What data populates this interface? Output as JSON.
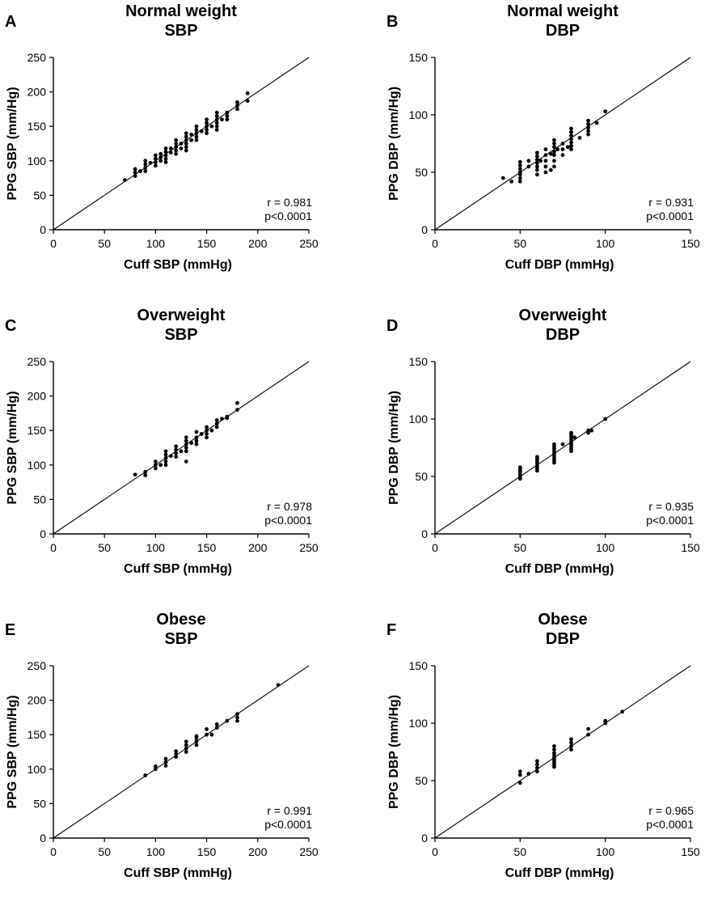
{
  "chart_data": [
    {
      "type": "scatter",
      "panel": "A",
      "title_lines": [
        "Normal weight",
        "SBP"
      ],
      "xlabel": "Cuff SBP (mmHg)",
      "ylabel": "PPG SBP (mm/Hg)",
      "xlim": [
        0,
        250
      ],
      "ylim": [
        0,
        250
      ],
      "xticks": [
        "0",
        "50",
        "100",
        "150",
        "200",
        "250"
      ],
      "yticks": [
        "0",
        "50",
        "100",
        "150",
        "200",
        "250"
      ],
      "tick_values": [
        0,
        50,
        100,
        150,
        200,
        250
      ],
      "identity_line": true,
      "stat_r": "r = 0.981",
      "stat_p": "p<0.0001",
      "points": [
        [
          70,
          72
        ],
        [
          80,
          78
        ],
        [
          80,
          83
        ],
        [
          80,
          88
        ],
        [
          85,
          85
        ],
        [
          90,
          85
        ],
        [
          90,
          90
        ],
        [
          90,
          95
        ],
        [
          90,
          100
        ],
        [
          95,
          97
        ],
        [
          100,
          93
        ],
        [
          100,
          98
        ],
        [
          100,
          103
        ],
        [
          100,
          108
        ],
        [
          105,
          100
        ],
        [
          105,
          105
        ],
        [
          105,
          110
        ],
        [
          110,
          98
        ],
        [
          110,
          103
        ],
        [
          110,
          108
        ],
        [
          110,
          113
        ],
        [
          110,
          118
        ],
        [
          115,
          112
        ],
        [
          115,
          118
        ],
        [
          120,
          110
        ],
        [
          120,
          115
        ],
        [
          120,
          120
        ],
        [
          120,
          125
        ],
        [
          120,
          130
        ],
        [
          125,
          118
        ],
        [
          125,
          125
        ],
        [
          130,
          115
        ],
        [
          130,
          120
        ],
        [
          130,
          125
        ],
        [
          130,
          130
        ],
        [
          130,
          135
        ],
        [
          130,
          140
        ],
        [
          135,
          130
        ],
        [
          135,
          138
        ],
        [
          140,
          130
        ],
        [
          140,
          135
        ],
        [
          140,
          140
        ],
        [
          140,
          145
        ],
        [
          140,
          150
        ],
        [
          145,
          143
        ],
        [
          150,
          140
        ],
        [
          150,
          145
        ],
        [
          150,
          150
        ],
        [
          150,
          155
        ],
        [
          150,
          160
        ],
        [
          155,
          150
        ],
        [
          160,
          145
        ],
        [
          160,
          150
        ],
        [
          160,
          155
        ],
        [
          160,
          160
        ],
        [
          160,
          165
        ],
        [
          160,
          170
        ],
        [
          165,
          160
        ],
        [
          170,
          160
        ],
        [
          170,
          165
        ],
        [
          170,
          170
        ],
        [
          180,
          175
        ],
        [
          180,
          180
        ],
        [
          180,
          185
        ],
        [
          190,
          187
        ],
        [
          190,
          198
        ]
      ]
    },
    {
      "type": "scatter",
      "panel": "B",
      "title_lines": [
        "Normal weight",
        "DBP"
      ],
      "xlabel": "Cuff DBP (mmHg)",
      "ylabel": "PPG DBP (mm/Hg)",
      "xlim": [
        0,
        150
      ],
      "ylim": [
        0,
        150
      ],
      "xticks": [
        "0",
        "50",
        "100",
        "150"
      ],
      "yticks": [
        "0",
        "50",
        "100",
        "150"
      ],
      "tick_values": [
        0,
        50,
        100,
        150
      ],
      "identity_line": true,
      "stat_r": "r = 0.931",
      "stat_p": "p<0.0001",
      "points": [
        [
          40,
          45
        ],
        [
          45,
          42
        ],
        [
          50,
          42
        ],
        [
          50,
          45
        ],
        [
          50,
          48
        ],
        [
          50,
          50
        ],
        [
          50,
          53
        ],
        [
          50,
          56
        ],
        [
          50,
          59
        ],
        [
          55,
          55
        ],
        [
          55,
          60
        ],
        [
          60,
          48
        ],
        [
          60,
          52
        ],
        [
          60,
          55
        ],
        [
          60,
          58
        ],
        [
          60,
          61
        ],
        [
          60,
          64
        ],
        [
          60,
          67
        ],
        [
          62,
          60
        ],
        [
          65,
          50
        ],
        [
          65,
          55
        ],
        [
          65,
          60
        ],
        [
          65,
          65
        ],
        [
          65,
          70
        ],
        [
          68,
          52
        ],
        [
          68,
          66
        ],
        [
          70,
          55
        ],
        [
          70,
          60
        ],
        [
          70,
          65
        ],
        [
          70,
          68
        ],
        [
          70,
          72
        ],
        [
          70,
          75
        ],
        [
          70,
          78
        ],
        [
          72,
          70
        ],
        [
          75,
          65
        ],
        [
          75,
          70
        ],
        [
          75,
          75
        ],
        [
          78,
          72
        ],
        [
          80,
          70
        ],
        [
          80,
          73
        ],
        [
          80,
          76
        ],
        [
          80,
          79
        ],
        [
          80,
          82
        ],
        [
          80,
          85
        ],
        [
          80,
          88
        ],
        [
          85,
          80
        ],
        [
          90,
          83
        ],
        [
          90,
          86
        ],
        [
          90,
          89
        ],
        [
          90,
          92
        ],
        [
          90,
          95
        ],
        [
          95,
          93
        ],
        [
          100,
          103
        ]
      ]
    },
    {
      "type": "scatter",
      "panel": "C",
      "title_lines": [
        "Overweight",
        "SBP"
      ],
      "xlabel": "Cuff SBP (mmHg)",
      "ylabel": "PPG SBP (mm/Hg)",
      "xlim": [
        0,
        250
      ],
      "ylim": [
        0,
        250
      ],
      "xticks": [
        "0",
        "50",
        "100",
        "150",
        "200",
        "250"
      ],
      "yticks": [
        "0",
        "50",
        "100",
        "150",
        "200",
        "250"
      ],
      "tick_values": [
        0,
        50,
        100,
        150,
        200,
        250
      ],
      "identity_line": true,
      "stat_r": "r = 0.978",
      "stat_p": "p<0.0001",
      "points": [
        [
          80,
          86
        ],
        [
          90,
          85
        ],
        [
          90,
          90
        ],
        [
          100,
          95
        ],
        [
          100,
          100
        ],
        [
          100,
          105
        ],
        [
          105,
          100
        ],
        [
          110,
          100
        ],
        [
          110,
          105
        ],
        [
          110,
          110
        ],
        [
          110,
          115
        ],
        [
          110,
          120
        ],
        [
          115,
          113
        ],
        [
          120,
          112
        ],
        [
          120,
          117
        ],
        [
          120,
          122
        ],
        [
          120,
          127
        ],
        [
          125,
          120
        ],
        [
          130,
          105
        ],
        [
          130,
          120
        ],
        [
          130,
          125
        ],
        [
          130,
          130
        ],
        [
          130,
          135
        ],
        [
          130,
          140
        ],
        [
          135,
          132
        ],
        [
          140,
          130
        ],
        [
          140,
          135
        ],
        [
          140,
          140
        ],
        [
          140,
          148
        ],
        [
          145,
          145
        ],
        [
          150,
          140
        ],
        [
          150,
          145
        ],
        [
          150,
          150
        ],
        [
          150,
          155
        ],
        [
          155,
          150
        ],
        [
          160,
          155
        ],
        [
          160,
          160
        ],
        [
          160,
          165
        ],
        [
          165,
          167
        ],
        [
          170,
          168
        ],
        [
          170,
          170
        ],
        [
          180,
          180
        ],
        [
          180,
          190
        ]
      ]
    },
    {
      "type": "scatter",
      "panel": "D",
      "title_lines": [
        "Overweight",
        "DBP"
      ],
      "xlabel": "Cuff DBP (mmHg)",
      "ylabel": "PPG DBP (mm/Hg)",
      "xlim": [
        0,
        150
      ],
      "ylim": [
        0,
        150
      ],
      "xticks": [
        "0",
        "50",
        "100",
        "150"
      ],
      "yticks": [
        "0",
        "50",
        "100",
        "150"
      ],
      "tick_values": [
        0,
        50,
        100,
        150
      ],
      "identity_line": true,
      "stat_r": "r = 0.935",
      "stat_p": "p<0.0001",
      "points": [
        [
          50,
          48
        ],
        [
          50,
          50
        ],
        [
          50,
          52
        ],
        [
          50,
          54
        ],
        [
          50,
          56
        ],
        [
          50,
          58
        ],
        [
          60,
          55
        ],
        [
          60,
          57
        ],
        [
          60,
          59
        ],
        [
          60,
          61
        ],
        [
          60,
          63
        ],
        [
          60,
          65
        ],
        [
          60,
          67
        ],
        [
          70,
          62
        ],
        [
          70,
          64
        ],
        [
          70,
          66
        ],
        [
          70,
          68
        ],
        [
          70,
          70
        ],
        [
          70,
          72
        ],
        [
          70,
          74
        ],
        [
          70,
          76
        ],
        [
          70,
          78
        ],
        [
          75,
          78
        ],
        [
          80,
          72
        ],
        [
          80,
          74
        ],
        [
          80,
          76
        ],
        [
          80,
          78
        ],
        [
          80,
          80
        ],
        [
          80,
          82
        ],
        [
          80,
          84
        ],
        [
          80,
          86
        ],
        [
          80,
          88
        ],
        [
          82,
          84
        ],
        [
          90,
          88
        ],
        [
          90,
          90
        ],
        [
          92,
          90
        ],
        [
          100,
          100
        ]
      ]
    },
    {
      "type": "scatter",
      "panel": "E",
      "title_lines": [
        "Obese",
        "SBP"
      ],
      "xlabel": "Cuff SBP (mmHg)",
      "ylabel": "PPG SBP (mm/Hg)",
      "xlim": [
        0,
        250
      ],
      "ylim": [
        0,
        250
      ],
      "xticks": [
        "0",
        "50",
        "100",
        "150",
        "200",
        "250"
      ],
      "yticks": [
        "0",
        "50",
        "100",
        "150",
        "200",
        "250"
      ],
      "tick_values": [
        0,
        50,
        100,
        150,
        200,
        250
      ],
      "identity_line": true,
      "stat_r": "r = 0.991",
      "stat_p": "p<0.0001",
      "points": [
        [
          90,
          91
        ],
        [
          100,
          100
        ],
        [
          100,
          104
        ],
        [
          110,
          105
        ],
        [
          110,
          110
        ],
        [
          110,
          115
        ],
        [
          120,
          118
        ],
        [
          120,
          122
        ],
        [
          120,
          126
        ],
        [
          130,
          125
        ],
        [
          130,
          130
        ],
        [
          130,
          135
        ],
        [
          130,
          140
        ],
        [
          140,
          135
        ],
        [
          140,
          140
        ],
        [
          140,
          145
        ],
        [
          140,
          148
        ],
        [
          150,
          150
        ],
        [
          150,
          158
        ],
        [
          155,
          150
        ],
        [
          160,
          160
        ],
        [
          160,
          165
        ],
        [
          170,
          170
        ],
        [
          180,
          170
        ],
        [
          180,
          175
        ],
        [
          180,
          180
        ],
        [
          220,
          222
        ]
      ]
    },
    {
      "type": "scatter",
      "panel": "F",
      "title_lines": [
        "Obese",
        "DBP"
      ],
      "xlabel": "Cuff DBP (mmHg)",
      "ylabel": "PPG DBP (mm/Hg)",
      "xlim": [
        0,
        150
      ],
      "ylim": [
        0,
        150
      ],
      "xticks": [
        "0",
        "50",
        "100",
        "150"
      ],
      "yticks": [
        "0",
        "50",
        "100",
        "150"
      ],
      "tick_values": [
        0,
        50,
        100,
        150
      ],
      "identity_line": true,
      "stat_r": "r = 0.965",
      "stat_p": "p<0.0001",
      "points": [
        [
          50,
          48
        ],
        [
          50,
          55
        ],
        [
          50,
          58
        ],
        [
          55,
          56
        ],
        [
          60,
          58
        ],
        [
          60,
          61
        ],
        [
          60,
          64
        ],
        [
          60,
          67
        ],
        [
          70,
          62
        ],
        [
          70,
          64
        ],
        [
          70,
          66
        ],
        [
          70,
          68
        ],
        [
          70,
          70
        ],
        [
          70,
          72
        ],
        [
          70,
          74
        ],
        [
          70,
          77
        ],
        [
          70,
          80
        ],
        [
          80,
          77
        ],
        [
          80,
          80
        ],
        [
          80,
          83
        ],
        [
          80,
          86
        ],
        [
          90,
          90
        ],
        [
          90,
          95
        ],
        [
          100,
          100
        ],
        [
          100,
          102
        ],
        [
          110,
          110
        ]
      ]
    }
  ]
}
